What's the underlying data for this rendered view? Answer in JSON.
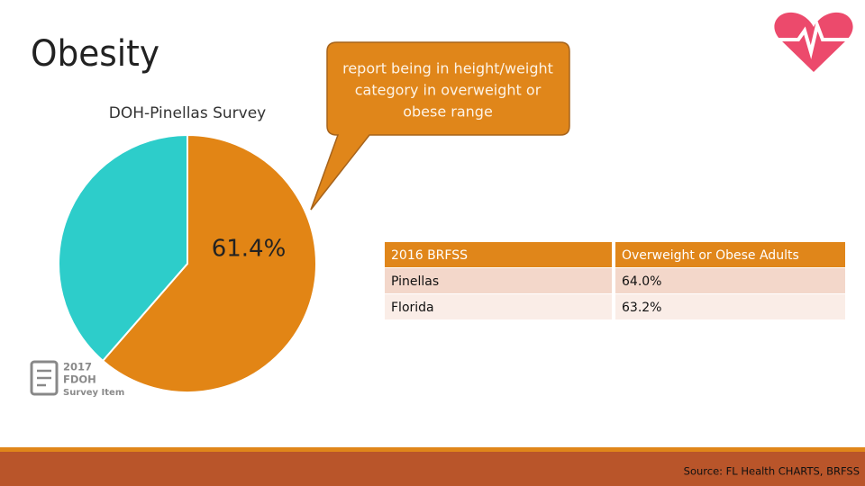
{
  "title": "Obesity",
  "callout": [
    "report being in height/weight",
    "category in overweight or",
    "obese range"
  ],
  "badge": [
    "2017",
    "FDOH",
    "Survey Item"
  ],
  "table": {
    "header": [
      "2016 BRFSS",
      "Overweight or Obese Adults"
    ],
    "rows": [
      [
        "Pinellas",
        "64.0%"
      ],
      [
        "Florida",
        "63.2%"
      ]
    ]
  },
  "source": "Source: FL Health CHARTS, BRFSS",
  "chart_data": {
    "type": "pie",
    "title": "DOH-Pinellas Survey",
    "values": [
      61.4,
      38.6
    ],
    "value_labels": [
      "61.4%",
      null
    ],
    "colors": [
      "#e28515",
      "#2dcdca"
    ]
  }
}
